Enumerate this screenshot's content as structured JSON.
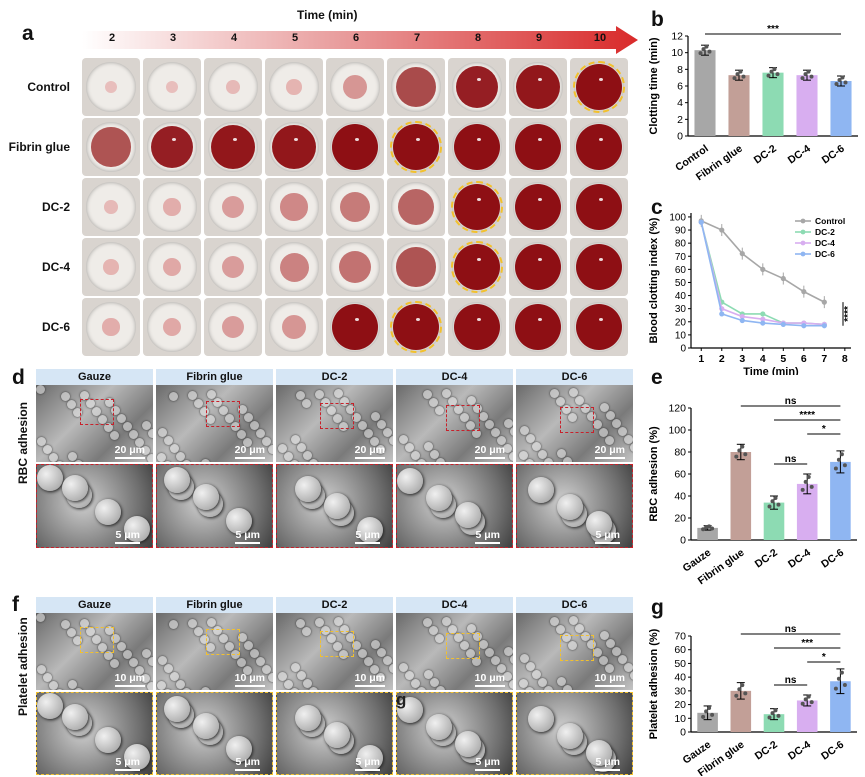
{
  "panels": {
    "a": "a",
    "b": "b",
    "c": "c",
    "d": "d",
    "e": "e",
    "f": "f",
    "g": "g"
  },
  "panel_a": {
    "time_title": "Time (min)",
    "time_ticks": [
      "2",
      "3",
      "4",
      "5",
      "6",
      "7",
      "8",
      "9",
      "10"
    ],
    "rows": [
      {
        "label": "Control",
        "clot_col": 8,
        "levels": [
          0.0,
          0.0,
          0.05,
          0.1,
          0.35,
          0.85,
          0.9,
          0.95,
          1.0
        ]
      },
      {
        "label": "Fibrin glue",
        "clot_col": 5,
        "levels": [
          0.8,
          0.9,
          0.95,
          0.95,
          1.0,
          1.0,
          1.0,
          1.0,
          1.0
        ]
      },
      {
        "label": "DC-2",
        "clot_col": 6,
        "levels": [
          0.05,
          0.15,
          0.3,
          0.45,
          0.55,
          0.7,
          1.0,
          1.0,
          1.0
        ]
      },
      {
        "label": "DC-4",
        "clot_col": 6,
        "levels": [
          0.1,
          0.2,
          0.3,
          0.5,
          0.6,
          0.8,
          1.0,
          1.0,
          1.0
        ]
      },
      {
        "label": "DC-6",
        "clot_col": 5,
        "levels": [
          0.15,
          0.2,
          0.3,
          0.35,
          1.0,
          1.0,
          1.0,
          1.0,
          1.0
        ]
      }
    ]
  },
  "panel_d": {
    "side_label": "RBC adhesion",
    "headers": [
      "Gauze",
      "Fibrin glue",
      "DC-2",
      "DC-4",
      "DC-6"
    ],
    "scale_top": "20 μm",
    "scale_bottom": "5 μm"
  },
  "panel_f": {
    "side_label": "Platelet adhesion",
    "headers": [
      "Gauze",
      "Fibrin glue",
      "DC-2",
      "DC-4",
      "DC-6"
    ],
    "scale_top": "10 μm",
    "scale_bottom": "5 μm",
    "stray_letter": "g"
  },
  "colors": {
    "gray": "#a7a7a7",
    "tan": "#c29f97",
    "green": "#8ddbb3",
    "purple": "#d8aef0",
    "blue": "#8fb6f2",
    "red_dash": "#c8202a",
    "yellow_dash": "#f2c12e",
    "arrow_red": "#d92a2a"
  },
  "chart_data": [
    {
      "panel": "b",
      "type": "bar",
      "categories": [
        "Control",
        "Fibrin glue",
        "DC-2",
        "DC-4",
        "DC-6"
      ],
      "values": [
        10.3,
        7.3,
        7.6,
        7.3,
        6.6
      ],
      "errors": [
        0.6,
        0.6,
        0.6,
        0.6,
        0.6
      ],
      "ylabel": "Clotting time (min)",
      "ylim": [
        0,
        12
      ],
      "yticks": [
        "0",
        "2",
        "4",
        "6",
        "8",
        "10",
        "12"
      ],
      "significance": [
        {
          "label": "***",
          "from": 0,
          "to": 4
        }
      ]
    },
    {
      "panel": "c",
      "type": "line",
      "x": [
        1,
        2,
        3,
        4,
        5,
        6,
        7
      ],
      "xticks": [
        "1",
        "2",
        "3",
        "4",
        "5",
        "6",
        "7",
        "8"
      ],
      "yticks": [
        "0",
        "10",
        "20",
        "30",
        "40",
        "50",
        "60",
        "70",
        "80",
        "90",
        "100"
      ],
      "xlabel": "Time (min)",
      "ylabel": "Blood clotting index (%)",
      "xlim": [
        0.5,
        8.3
      ],
      "ylim": [
        0,
        103
      ],
      "series": [
        {
          "name": "Control",
          "values": [
            97,
            90,
            72,
            60,
            53,
            43,
            35
          ]
        },
        {
          "name": "DC-2",
          "values": [
            96,
            35,
            26,
            26,
            19,
            19,
            18
          ]
        },
        {
          "name": "DC-4",
          "values": [
            96,
            30,
            24,
            22,
            19,
            19,
            18
          ]
        },
        {
          "name": "DC-6",
          "values": [
            96,
            26,
            21,
            19,
            18,
            17,
            17
          ]
        }
      ],
      "significance": "****"
    },
    {
      "panel": "e",
      "type": "bar",
      "categories": [
        "Gauze",
        "Fibrin glue",
        "DC-2",
        "DC-4",
        "DC-6"
      ],
      "values": [
        11,
        80,
        34,
        51,
        71
      ],
      "errors": [
        2,
        7,
        6,
        9,
        10
      ],
      "ylabel": "RBC adhesion (%)",
      "ylim": [
        0,
        120
      ],
      "yticks": [
        "0",
        "20",
        "40",
        "60",
        "80",
        "100",
        "120"
      ],
      "significance": [
        {
          "label": "ns",
          "from": 1,
          "to": 4
        },
        {
          "label": "****",
          "from": 2,
          "to": 4
        },
        {
          "label": "*",
          "from": 3,
          "to": 4
        },
        {
          "label": "ns",
          "from": 2,
          "to": 3
        }
      ]
    },
    {
      "panel": "g",
      "type": "bar",
      "categories": [
        "Gauze",
        "Fibrin glue",
        "DC-2",
        "DC-4",
        "DC-6"
      ],
      "values": [
        14,
        30,
        13,
        23,
        37
      ],
      "errors": [
        5,
        6,
        4,
        4,
        9
      ],
      "ylabel": "Platelet adhesion (%)",
      "ylim": [
        0,
        70
      ],
      "yticks": [
        "0",
        "10",
        "20",
        "30",
        "40",
        "50",
        "60",
        "70"
      ],
      "significance": [
        {
          "label": "ns",
          "from": 1,
          "to": 4
        },
        {
          "label": "***",
          "from": 2,
          "to": 4
        },
        {
          "label": "*",
          "from": 3,
          "to": 4
        },
        {
          "label": "ns",
          "from": 2,
          "to": 3
        }
      ]
    }
  ]
}
